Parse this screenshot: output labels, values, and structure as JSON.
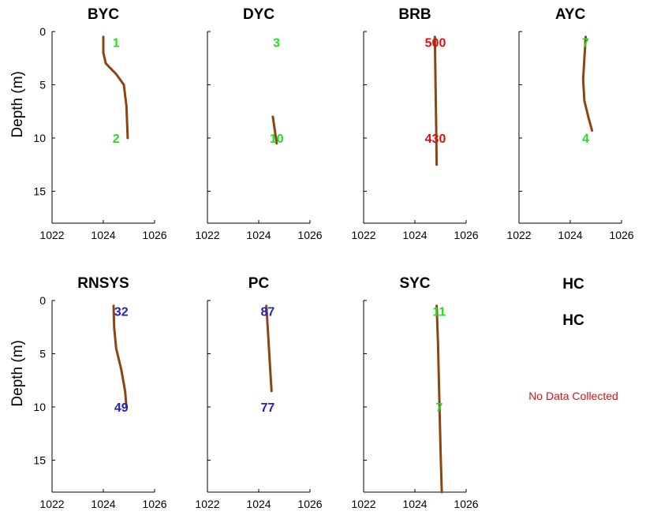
{
  "chart_data": [
    {
      "type": "line",
      "title": "BYC",
      "ylabel": "Depth (m)",
      "xlim": [
        1022,
        1026
      ],
      "ylim": [
        0,
        18
      ],
      "y_reversed": true,
      "x_ticks": [
        "1022",
        "1024",
        "1026"
      ],
      "y_ticks": [
        "0",
        "5",
        "10",
        "15"
      ],
      "series": [
        {
          "x": [
            1024.0,
            1024.0,
            1024.1,
            1024.5,
            1024.8,
            1024.9,
            1024.95
          ],
          "y": [
            0.5,
            2.0,
            3.0,
            4.0,
            5.0,
            7.0,
            10.0
          ]
        }
      ],
      "annotations": [
        {
          "text": "1",
          "x": 1024.5,
          "y": 1.0,
          "color": "#22dd22"
        },
        {
          "text": "2",
          "x": 1024.5,
          "y": 10.0,
          "color": "#22dd22"
        }
      ]
    },
    {
      "type": "line",
      "title": "DYC",
      "ylabel": "",
      "xlim": [
        1022,
        1026
      ],
      "ylim": [
        0,
        18
      ],
      "y_reversed": true,
      "x_ticks": [
        "1022",
        "1024",
        "1026"
      ],
      "y_ticks": [
        "",
        "",
        "",
        ""
      ],
      "series": [
        {
          "x": [
            1024.55,
            1024.7
          ],
          "y": [
            8.0,
            10.5
          ]
        }
      ],
      "annotations": [
        {
          "text": "3",
          "x": 1024.7,
          "y": 1.0,
          "color": "#22dd22"
        },
        {
          "text": "10",
          "x": 1024.7,
          "y": 10.0,
          "color": "#22dd22"
        }
      ]
    },
    {
      "type": "line",
      "title": "BRB",
      "ylabel": "",
      "xlim": [
        1022,
        1026
      ],
      "ylim": [
        0,
        18
      ],
      "y_reversed": true,
      "x_ticks": [
        "1022",
        "1024",
        "1026"
      ],
      "y_ticks": [
        "",
        "",
        "",
        ""
      ],
      "series": [
        {
          "x": [
            1024.78,
            1024.8,
            1024.83,
            1024.85
          ],
          "y": [
            0.5,
            4.0,
            9.0,
            12.5
          ]
        }
      ],
      "annotations": [
        {
          "text": "500",
          "x": 1024.8,
          "y": 1.0,
          "color": "#dd1111"
        },
        {
          "text": "430",
          "x": 1024.8,
          "y": 10.0,
          "color": "#dd1111"
        }
      ]
    },
    {
      "type": "line",
      "title": "AYC",
      "ylabel": "",
      "xlim": [
        1022,
        1026
      ],
      "ylim": [
        0,
        18
      ],
      "y_reversed": true,
      "x_ticks": [
        "1022",
        "1024",
        "1026"
      ],
      "y_ticks": [
        "",
        "",
        "",
        ""
      ],
      "series": [
        {
          "x": [
            1024.6,
            1024.55,
            1024.5,
            1024.55,
            1024.7,
            1024.85
          ],
          "y": [
            0.5,
            2.5,
            4.5,
            6.5,
            8.0,
            9.3
          ]
        }
      ],
      "annotations": [
        {
          "text": "7",
          "x": 1024.6,
          "y": 1.0,
          "color": "#22dd22"
        },
        {
          "text": "4",
          "x": 1024.6,
          "y": 10.0,
          "color": "#22dd22"
        }
      ]
    },
    {
      "type": "line",
      "title": "RNSYS",
      "ylabel": "Depth (m)",
      "xlim": [
        1022,
        1026
      ],
      "ylim": [
        0,
        18
      ],
      "y_reversed": true,
      "x_ticks": [
        "1022",
        "1024",
        "1026"
      ],
      "y_ticks": [
        "0",
        "5",
        "10",
        "15"
      ],
      "series": [
        {
          "x": [
            1024.4,
            1024.42,
            1024.5,
            1024.7,
            1024.85,
            1024.9
          ],
          "y": [
            0.5,
            2.5,
            4.5,
            6.5,
            8.5,
            10.0
          ]
        }
      ],
      "annotations": [
        {
          "text": "32",
          "x": 1024.7,
          "y": 1.0,
          "color": "#2222bb"
        },
        {
          "text": "49",
          "x": 1024.7,
          "y": 10.0,
          "color": "#2222bb"
        }
      ]
    },
    {
      "type": "line",
      "title": "PC",
      "ylabel": "",
      "xlim": [
        1022,
        1026
      ],
      "ylim": [
        0,
        18
      ],
      "y_reversed": true,
      "x_ticks": [
        "1022",
        "1024",
        "1026"
      ],
      "y_ticks": [
        "",
        "",
        "",
        ""
      ],
      "series": [
        {
          "x": [
            1024.3,
            1024.35,
            1024.4,
            1024.45,
            1024.5
          ],
          "y": [
            0.5,
            2.5,
            4.5,
            6.5,
            8.5
          ]
        }
      ],
      "annotations": [
        {
          "text": "87",
          "x": 1024.35,
          "y": 1.0,
          "color": "#2222bb"
        },
        {
          "text": "77",
          "x": 1024.35,
          "y": 10.0,
          "color": "#2222bb"
        }
      ]
    },
    {
      "type": "line",
      "title": "SYC",
      "ylabel": "",
      "xlim": [
        1022,
        1026
      ],
      "ylim": [
        0,
        18
      ],
      "y_reversed": true,
      "x_ticks": [
        "1022",
        "1024",
        "1026"
      ],
      "y_ticks": [
        "",
        "",
        "",
        ""
      ],
      "series": [
        {
          "x": [
            1024.85,
            1024.9,
            1024.95,
            1025.0,
            1025.05
          ],
          "y": [
            0.5,
            4.0,
            9.0,
            14.0,
            18.0
          ]
        }
      ],
      "annotations": [
        {
          "text": "11",
          "x": 1024.95,
          "y": 1.0,
          "color": "#22dd22"
        },
        {
          "text": "7",
          "x": 1024.95,
          "y": 10.0,
          "color": "#22dd22"
        }
      ]
    },
    {
      "type": "empty",
      "title": "HC",
      "subtitle": "HC",
      "note": "No Data Collected",
      "note_color": "#dd1111"
    }
  ]
}
